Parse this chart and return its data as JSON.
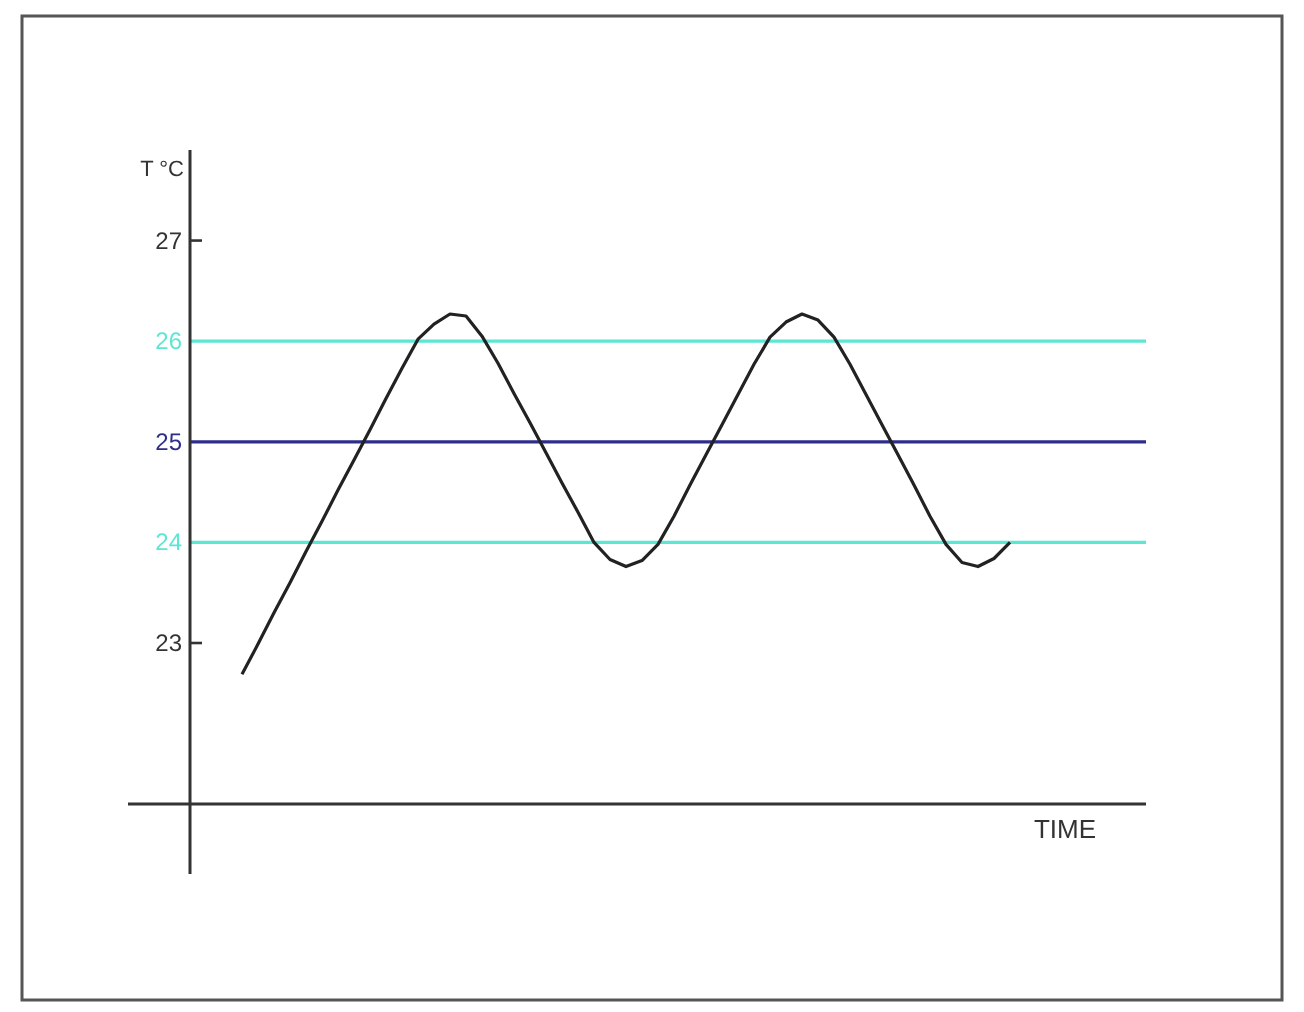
{
  "chart_data": {
    "type": "line",
    "xlabel": "TIME",
    "ylabel": "T °C",
    "categories": [
      null,
      null,
      null,
      null,
      null,
      null,
      null,
      null,
      null,
      null,
      null,
      null,
      null,
      null,
      null,
      null,
      null,
      null,
      null,
      null,
      null,
      null,
      null,
      null,
      null,
      null,
      null,
      null,
      null,
      null,
      null,
      null,
      null,
      null,
      null,
      null,
      null,
      null,
      null,
      null,
      null,
      null,
      null,
      null,
      null,
      null,
      null,
      null,
      null
    ],
    "series": [
      {
        "color": "#222222",
        "values": [
          22.69,
          22.99,
          23.3,
          23.6,
          23.91,
          24.21,
          24.52,
          24.82,
          25.12,
          25.43,
          25.73,
          26.02,
          26.17,
          26.27,
          26.25,
          26.05,
          25.78,
          25.48,
          25.19,
          24.89,
          24.59,
          24.3,
          24.0,
          23.83,
          23.76,
          23.82,
          23.98,
          24.26,
          24.57,
          24.87,
          25.17,
          25.47,
          25.77,
          26.04,
          26.19,
          26.27,
          26.21,
          26.04,
          25.77,
          25.47,
          25.17,
          24.87,
          24.57,
          24.26,
          23.98,
          23.8,
          23.76,
          23.84,
          24.0
        ]
      }
    ],
    "ylim": [
      21.4,
      27.9
    ],
    "yticks": [
      23,
      24,
      25,
      26,
      27
    ],
    "tick_labels": "y",
    "marker": "none",
    "line_style": "solid",
    "ref_lines": [
      {
        "axis": "y",
        "value": 24,
        "color": "#5ce6d4"
      },
      {
        "axis": "y",
        "value": 25,
        "color": "#2e2e8a"
      },
      {
        "axis": "y",
        "value": 26,
        "color": "#5ce6d4"
      }
    ]
  }
}
